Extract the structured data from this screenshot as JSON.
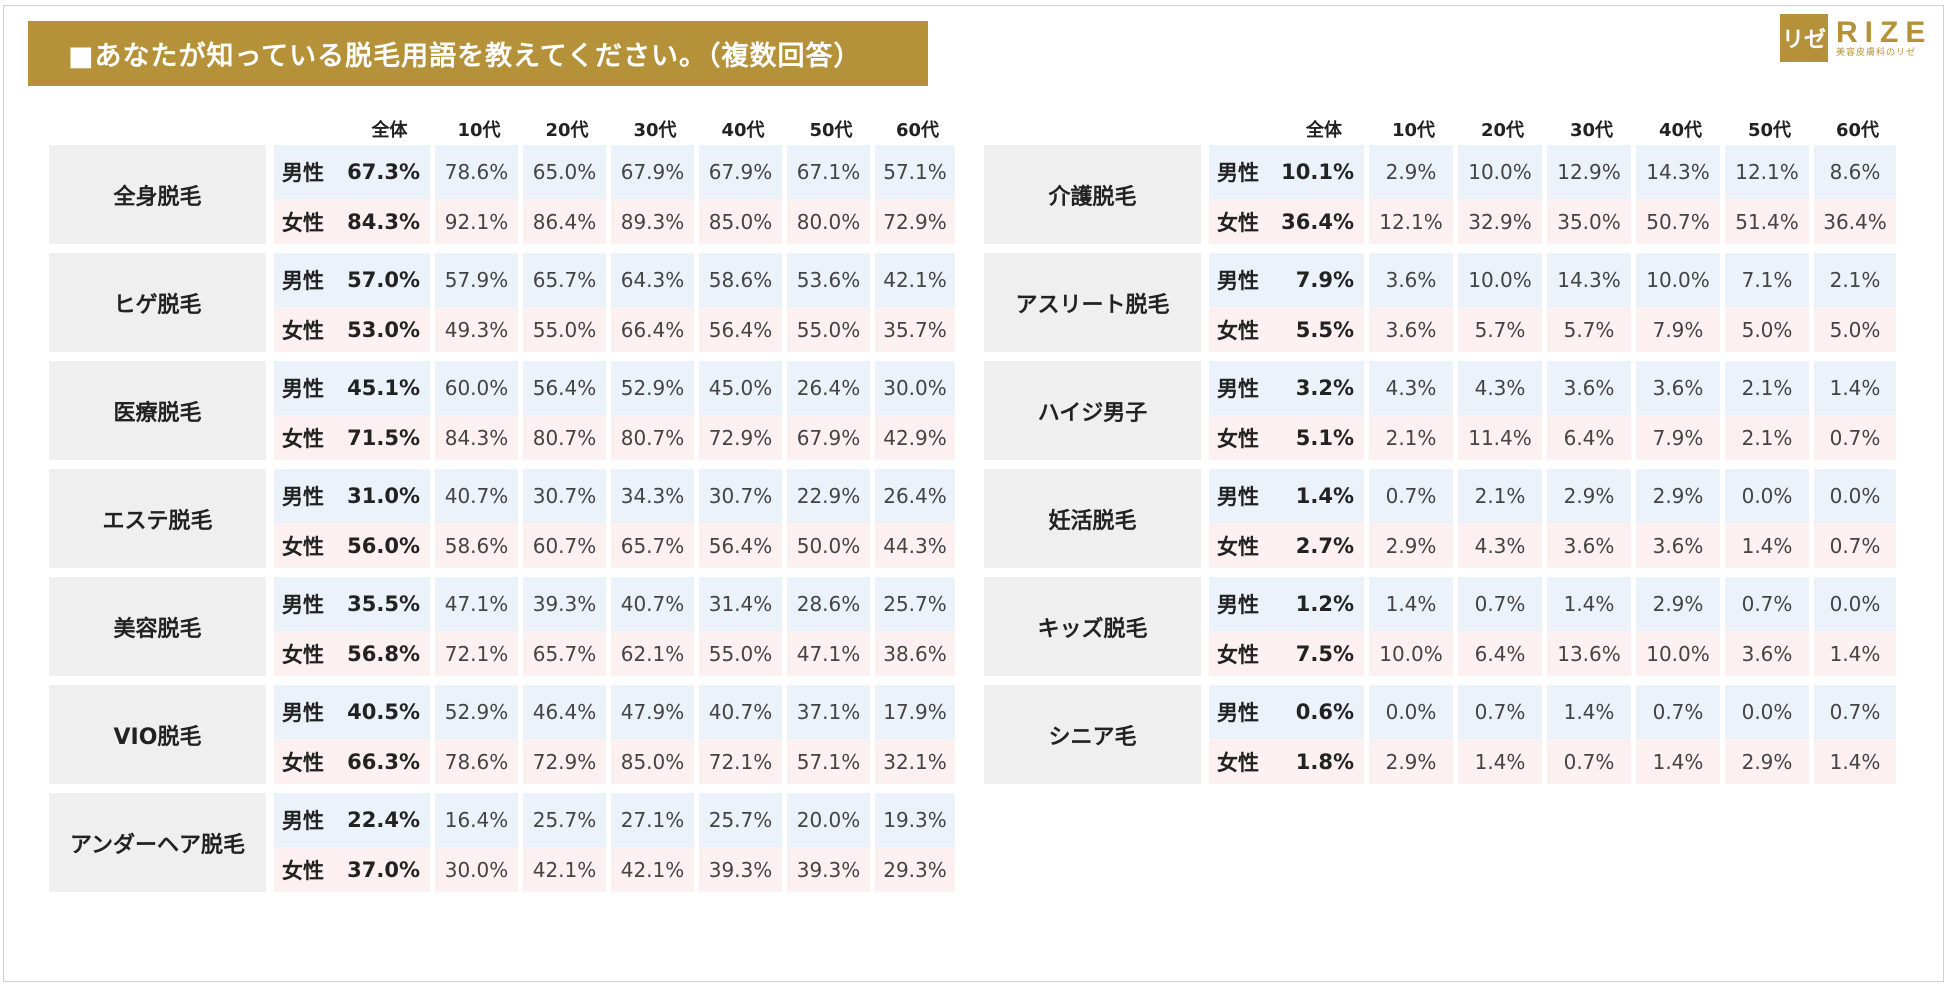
{
  "title": "■あなたが知っている脱毛用語を教えてください。（複数回答）",
  "logo": {
    "mark": "リゼ",
    "word": "RIZE",
    "sub": "美容皮膚科のリゼ"
  },
  "table_header": [
    "全体",
    "10代",
    "20代",
    "30代",
    "40代",
    "50代",
    "60代"
  ],
  "left_table": [
    {
      "term": "全身脱毛",
      "male_label": "男性",
      "male_total": "67.3%",
      "male": [
        "78.6%",
        "65.0%",
        "67.9%",
        "67.9%",
        "67.1%",
        "57.1%"
      ],
      "female_label": "女性",
      "female_total": "84.3%",
      "female": [
        "92.1%",
        "86.4%",
        "89.3%",
        "85.0%",
        "80.0%",
        "72.9%"
      ]
    },
    {
      "term": "ヒゲ脱毛",
      "male_label": "男性",
      "male_total": "57.0%",
      "male": [
        "57.9%",
        "65.7%",
        "64.3%",
        "58.6%",
        "53.6%",
        "42.1%"
      ],
      "female_label": "女性",
      "female_total": "53.0%",
      "female": [
        "49.3%",
        "55.0%",
        "66.4%",
        "56.4%",
        "55.0%",
        "35.7%"
      ]
    },
    {
      "term": "医療脱毛",
      "male_label": "男性",
      "male_total": "45.1%",
      "male": [
        "60.0%",
        "56.4%",
        "52.9%",
        "45.0%",
        "26.4%",
        "30.0%"
      ],
      "female_label": "女性",
      "female_total": "71.5%",
      "female": [
        "84.3%",
        "80.7%",
        "80.7%",
        "72.9%",
        "67.9%",
        "42.9%"
      ]
    },
    {
      "term": "エステ脱毛",
      "male_label": "男性",
      "male_total": "31.0%",
      "male": [
        "40.7%",
        "30.7%",
        "34.3%",
        "30.7%",
        "22.9%",
        "26.4%"
      ],
      "female_label": "女性",
      "female_total": "56.0%",
      "female": [
        "58.6%",
        "60.7%",
        "65.7%",
        "56.4%",
        "50.0%",
        "44.3%"
      ]
    },
    {
      "term": "美容脱毛",
      "male_label": "男性",
      "male_total": "35.5%",
      "male": [
        "47.1%",
        "39.3%",
        "40.7%",
        "31.4%",
        "28.6%",
        "25.7%"
      ],
      "female_label": "女性",
      "female_total": "56.8%",
      "female": [
        "72.1%",
        "65.7%",
        "62.1%",
        "55.0%",
        "47.1%",
        "38.6%"
      ]
    },
    {
      "term": "VIO脱毛",
      "male_label": "男性",
      "male_total": "40.5%",
      "male": [
        "52.9%",
        "46.4%",
        "47.9%",
        "40.7%",
        "37.1%",
        "17.9%"
      ],
      "female_label": "女性",
      "female_total": "66.3%",
      "female": [
        "78.6%",
        "72.9%",
        "85.0%",
        "72.1%",
        "57.1%",
        "32.1%"
      ]
    },
    {
      "term": "アンダーヘア脱毛",
      "male_label": "男性",
      "male_total": "22.4%",
      "male": [
        "16.4%",
        "25.7%",
        "27.1%",
        "25.7%",
        "20.0%",
        "19.3%"
      ],
      "female_label": "女性",
      "female_total": "37.0%",
      "female": [
        "30.0%",
        "42.1%",
        "42.1%",
        "39.3%",
        "39.3%",
        "29.3%"
      ]
    }
  ],
  "right_table": [
    {
      "term": "介護脱毛",
      "male_label": "男性",
      "male_total": "10.1%",
      "male": [
        "2.9%",
        "10.0%",
        "12.9%",
        "14.3%",
        "12.1%",
        "8.6%"
      ],
      "female_label": "女性",
      "female_total": "36.4%",
      "female": [
        "12.1%",
        "32.9%",
        "35.0%",
        "50.7%",
        "51.4%",
        "36.4%"
      ]
    },
    {
      "term": "アスリート脱毛",
      "male_label": "男性",
      "male_total": "7.9%",
      "male": [
        "3.6%",
        "10.0%",
        "14.3%",
        "10.0%",
        "7.1%",
        "2.1%"
      ],
      "female_label": "女性",
      "female_total": "5.5%",
      "female": [
        "3.6%",
        "5.7%",
        "5.7%",
        "7.9%",
        "5.0%",
        "5.0%"
      ]
    },
    {
      "term": "ハイジ男子",
      "male_label": "男性",
      "male_total": "3.2%",
      "male": [
        "4.3%",
        "4.3%",
        "3.6%",
        "3.6%",
        "2.1%",
        "1.4%"
      ],
      "female_label": "女性",
      "female_total": "5.1%",
      "female": [
        "2.1%",
        "11.4%",
        "6.4%",
        "7.9%",
        "2.1%",
        "0.7%"
      ]
    },
    {
      "term": "妊活脱毛",
      "male_label": "男性",
      "male_total": "1.4%",
      "male": [
        "0.7%",
        "2.1%",
        "2.9%",
        "2.9%",
        "0.0%",
        "0.0%"
      ],
      "female_label": "女性",
      "female_total": "2.7%",
      "female": [
        "2.9%",
        "4.3%",
        "3.6%",
        "3.6%",
        "1.4%",
        "0.7%"
      ]
    },
    {
      "term": "キッズ脱毛",
      "male_label": "男性",
      "male_total": "1.2%",
      "male": [
        "1.4%",
        "0.7%",
        "1.4%",
        "2.9%",
        "0.7%",
        "0.0%"
      ],
      "female_label": "女性",
      "female_total": "7.5%",
      "female": [
        "10.0%",
        "6.4%",
        "13.6%",
        "10.0%",
        "3.6%",
        "1.4%"
      ]
    },
    {
      "term": "シニア毛",
      "male_label": "男性",
      "male_total": "0.6%",
      "male": [
        "0.0%",
        "0.7%",
        "1.4%",
        "0.7%",
        "0.0%",
        "0.7%"
      ],
      "female_label": "女性",
      "female_total": "1.8%",
      "female": [
        "2.9%",
        "1.4%",
        "0.7%",
        "1.4%",
        "2.9%",
        "1.4%"
      ]
    }
  ],
  "colors": {
    "gold": "#b5923a",
    "term_bg": "#efefef",
    "male_bg": "#ebf2f9",
    "female_bg": "#fcf0f1"
  }
}
